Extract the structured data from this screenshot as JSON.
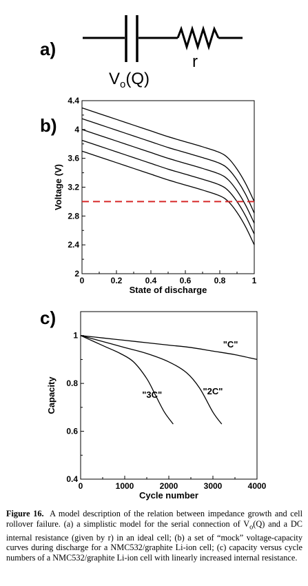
{
  "panels": {
    "a": {
      "label": "a)",
      "capacitor_symbol_base": "V",
      "capacitor_symbol_sub": "o",
      "capacitor_symbol_arg": "(Q)",
      "resistor_symbol": "r"
    },
    "b": {
      "label": "b)"
    },
    "c": {
      "label": "c)"
    }
  },
  "chart_data": [
    {
      "panel": "b",
      "type": "line",
      "title": "",
      "xlabel": "State of discharge",
      "ylabel": "Voltage (V)",
      "xlim": [
        0,
        1
      ],
      "ylim": [
        2,
        4.4
      ],
      "xticks": [
        "0",
        "0.2",
        "0.4",
        "0.6",
        "0.8",
        "1"
      ],
      "yticks": [
        "2",
        "2.4",
        "2.8",
        "3.2",
        "3.6",
        "4",
        "4.4"
      ],
      "grid": false,
      "series": [
        {
          "x": [
            0,
            0.1,
            0.2,
            0.3,
            0.4,
            0.5,
            0.6,
            0.7,
            0.8,
            0.85,
            0.9,
            0.95,
            1.0
          ],
          "values": [
            4.3,
            4.22,
            4.14,
            4.06,
            3.98,
            3.9,
            3.83,
            3.76,
            3.68,
            3.6,
            3.45,
            3.25,
            3.0
          ]
        },
        {
          "x": [
            0,
            0.1,
            0.2,
            0.3,
            0.4,
            0.5,
            0.6,
            0.7,
            0.8,
            0.85,
            0.9,
            0.95,
            1.0
          ],
          "values": [
            4.15,
            4.07,
            3.99,
            3.91,
            3.83,
            3.75,
            3.68,
            3.61,
            3.53,
            3.45,
            3.3,
            3.1,
            2.84
          ]
        },
        {
          "x": [
            0,
            0.1,
            0.2,
            0.3,
            0.4,
            0.5,
            0.6,
            0.7,
            0.8,
            0.85,
            0.9,
            0.95,
            1.0
          ],
          "values": [
            4.0,
            3.92,
            3.84,
            3.76,
            3.68,
            3.6,
            3.53,
            3.46,
            3.38,
            3.3,
            3.15,
            2.95,
            2.7
          ]
        },
        {
          "x": [
            0,
            0.1,
            0.2,
            0.3,
            0.4,
            0.5,
            0.6,
            0.7,
            0.8,
            0.85,
            0.9,
            0.95,
            1.0
          ],
          "values": [
            3.85,
            3.77,
            3.69,
            3.61,
            3.53,
            3.45,
            3.38,
            3.31,
            3.23,
            3.15,
            3.0,
            2.8,
            2.55
          ]
        },
        {
          "x": [
            0,
            0.1,
            0.2,
            0.3,
            0.4,
            0.5,
            0.6,
            0.7,
            0.8,
            0.85,
            0.9,
            0.95,
            1.0
          ],
          "values": [
            3.7,
            3.62,
            3.54,
            3.46,
            3.38,
            3.3,
            3.23,
            3.16,
            3.08,
            3.0,
            2.85,
            2.65,
            2.4
          ]
        }
      ],
      "reference_line": {
        "y": 3.0,
        "x_from": 0,
        "x_to": 1,
        "style": "dashed",
        "color": "#d62728"
      },
      "line_color": "#000000"
    },
    {
      "panel": "c",
      "type": "line",
      "title": "",
      "xlabel": "Cycle number",
      "ylabel": "Capacity",
      "xlim": [
        0,
        4000
      ],
      "ylim": [
        0.4,
        1.1
      ],
      "xticks": [
        "0",
        "1000",
        "2000",
        "3000",
        "4000"
      ],
      "yticks": [
        "0.4",
        "0.6",
        "0.8",
        "1"
      ],
      "grid": false,
      "series": [
        {
          "name": "\"C\"",
          "x": [
            0,
            500,
            1000,
            1500,
            2000,
            2500,
            3000,
            3500,
            4000
          ],
          "values": [
            1.0,
            0.99,
            0.98,
            0.97,
            0.96,
            0.95,
            0.935,
            0.92,
            0.9
          ]
        },
        {
          "name": "\"2C\"",
          "x": [
            0,
            500,
            1000,
            1500,
            2000,
            2400,
            2700,
            3000,
            3200
          ],
          "values": [
            1.0,
            0.975,
            0.95,
            0.925,
            0.89,
            0.845,
            0.78,
            0.68,
            0.63
          ]
        },
        {
          "name": "\"3C\"",
          "x": [
            0,
            300,
            600,
            900,
            1200,
            1500,
            1700,
            1900,
            2100
          ],
          "values": [
            1.0,
            0.975,
            0.95,
            0.925,
            0.89,
            0.82,
            0.75,
            0.68,
            0.63
          ]
        }
      ],
      "line_color": "#000000"
    }
  ],
  "caption": {
    "label": "Figure 16.",
    "text_1": "A model description of the relation between impedance growth and cell rollover failure. (a) a simplistic model for the serial connection of V",
    "text_sub": "o",
    "text_2": "(Q) and a DC internal resistance (given by r) in an ideal cell; (b) a set of “mock” voltage-capacity curves during discharge for a NMC532/graphite Li-ion cell; (c) capacity versus cycle numbers of a NMC532/graphite Li-ion cell with linearly increased internal resistance."
  }
}
